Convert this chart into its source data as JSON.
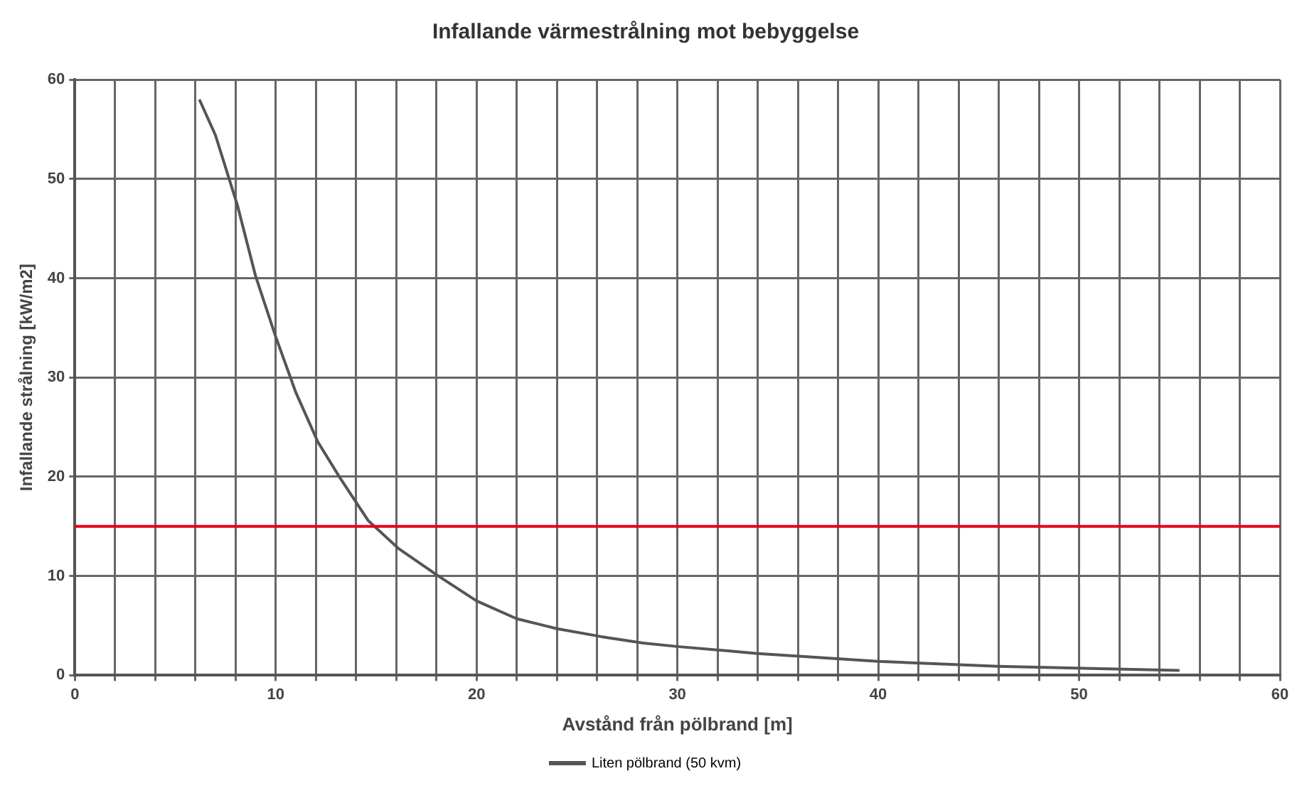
{
  "chart_data": {
    "type": "line",
    "title": "Infallande värmestrålning mot bebyggelse",
    "xlabel": "Avstånd från pölbrand [m]",
    "ylabel": "Infallande strålning [kW/m2]",
    "xlim": [
      0,
      60
    ],
    "xticks": [
      0,
      {
        "value": 2,
        "label": null
      },
      {
        "value": 4,
        "label": null
      },
      {
        "value": 6,
        "label": null
      },
      {
        "value": 8,
        "label": null
      },
      10,
      {
        "value": 12,
        "label": null
      },
      {
        "value": 14,
        "label": null
      },
      {
        "value": 16,
        "label": null
      },
      {
        "value": 18,
        "label": null
      },
      20,
      {
        "value": 22,
        "label": null
      },
      {
        "value": 24,
        "label": null
      },
      {
        "value": 26,
        "label": null
      },
      {
        "value": 28,
        "label": null
      },
      30,
      {
        "value": 32,
        "label": null
      },
      {
        "value": 34,
        "label": null
      },
      {
        "value": 36,
        "label": null
      },
      {
        "value": 38,
        "label": null
      },
      40,
      {
        "value": 42,
        "label": null
      },
      {
        "value": 44,
        "label": null
      },
      {
        "value": 46,
        "label": null
      },
      {
        "value": 48,
        "label": null
      },
      50,
      {
        "value": 52,
        "label": null
      },
      {
        "value": 54,
        "label": null
      },
      {
        "value": 56,
        "label": null
      },
      {
        "value": 58,
        "label": null
      },
      60
    ],
    "ylim": [
      0,
      60
    ],
    "yticks": [
      0,
      10,
      20,
      30,
      40,
      50,
      60
    ],
    "series": [
      {
        "name": "Liten pölbrand (50 kvm)",
        "color": "#555555",
        "x": [
          6.2,
          7,
          8.1,
          9,
          10,
          11,
          12.1,
          13.2,
          14.6,
          16.1,
          18.1,
          20,
          22,
          24,
          26.2,
          28.3,
          30,
          34,
          40,
          46,
          55
        ],
        "values": [
          58,
          54.4,
          47.3,
          40.2,
          34.1,
          28.5,
          23.5,
          19.9,
          15.6,
          12.8,
          10,
          7.5,
          5.7,
          4.7,
          3.9,
          3.25,
          2.9,
          2.2,
          1.4,
          0.9,
          0.5
        ]
      }
    ],
    "ref_lines": [
      {
        "axis": "y",
        "value": 15,
        "color": "#e8001c"
      }
    ],
    "grid": true,
    "legend": "bottom",
    "marker": "none",
    "line_style": "solid"
  }
}
